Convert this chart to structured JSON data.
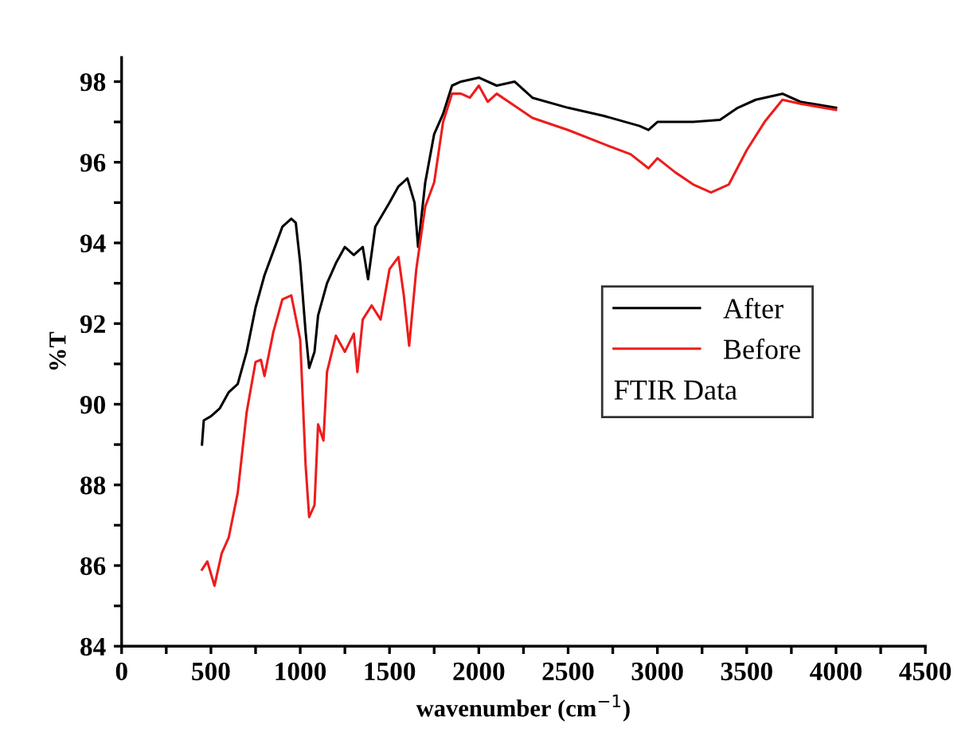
{
  "chart_data": {
    "type": "line",
    "xlabel": "wavenumber (cm$^{−1}$)",
    "ylabel": "%T",
    "legend_title": "FTIR Data",
    "xlim": [
      0,
      4500
    ],
    "ylim": [
      84,
      98.6
    ],
    "xticks": [
      0,
      {
        "value": 250,
        "label": null
      },
      500,
      {
        "value": 750,
        "label": null
      },
      1000,
      {
        "value": 1250,
        "label": null
      },
      1500,
      {
        "value": 1750,
        "label": null
      },
      2000,
      {
        "value": 2250,
        "label": null
      },
      2500,
      {
        "value": 2750,
        "label": null
      },
      3000,
      {
        "value": 3250,
        "label": null
      },
      3500,
      {
        "value": 3750,
        "label": null
      },
      4000,
      {
        "value": 4250,
        "label": null
      },
      4500
    ],
    "yticks": [
      84,
      {
        "value": 85,
        "label": null
      },
      86,
      {
        "value": 87,
        "label": null
      },
      88,
      {
        "value": 89,
        "label": null
      },
      90,
      {
        "value": 91,
        "label": null
      },
      92,
      {
        "value": 93,
        "label": null
      },
      94,
      {
        "value": 95,
        "label": null
      },
      96,
      {
        "value": 97,
        "label": null
      },
      98
    ],
    "grid": false,
    "legend": "right",
    "marker": "none",
    "line_style": "solid",
    "series": [
      {
        "name": "After",
        "color": "#000000",
        "x": [
          450,
          460,
          500,
          550,
          600,
          650,
          700,
          750,
          800,
          850,
          900,
          950,
          975,
          1000,
          1030,
          1050,
          1080,
          1100,
          1150,
          1200,
          1250,
          1300,
          1350,
          1380,
          1420,
          1500,
          1550,
          1600,
          1640,
          1660,
          1700,
          1750,
          1800,
          1850,
          1900,
          2000,
          2100,
          2200,
          2300,
          2500,
          2700,
          2900,
          2950,
          3000,
          3200,
          3350,
          3450,
          3550,
          3700,
          3800,
          4000
        ],
        "values": [
          89.0,
          89.6,
          89.7,
          89.9,
          90.3,
          90.5,
          91.3,
          92.4,
          93.2,
          93.8,
          94.4,
          94.6,
          94.5,
          93.5,
          91.8,
          90.9,
          91.3,
          92.2,
          93.0,
          93.5,
          93.9,
          93.7,
          93.9,
          93.1,
          94.4,
          95.0,
          95.4,
          95.6,
          95.0,
          93.9,
          95.5,
          96.7,
          97.2,
          97.9,
          98.0,
          98.1,
          97.9,
          98.0,
          97.6,
          97.35,
          97.15,
          96.9,
          96.8,
          97.0,
          97.0,
          97.05,
          97.35,
          97.55,
          97.7,
          97.5,
          97.35
        ]
      },
      {
        "name": "Before",
        "color": "#ee1c1c",
        "x": [
          450,
          480,
          520,
          560,
          600,
          650,
          700,
          750,
          780,
          800,
          850,
          900,
          950,
          1000,
          1030,
          1050,
          1080,
          1100,
          1130,
          1150,
          1200,
          1250,
          1300,
          1320,
          1350,
          1400,
          1450,
          1500,
          1550,
          1580,
          1610,
          1650,
          1700,
          1750,
          1800,
          1850,
          1900,
          1950,
          2000,
          2050,
          2100,
          2200,
          2300,
          2500,
          2700,
          2850,
          2950,
          3000,
          3100,
          3200,
          3300,
          3400,
          3500,
          3600,
          3700,
          3800,
          4000
        ],
        "values": [
          85.9,
          86.1,
          85.5,
          86.3,
          86.7,
          87.8,
          89.8,
          91.05,
          91.1,
          90.7,
          91.8,
          92.6,
          92.7,
          91.6,
          88.5,
          87.2,
          87.5,
          89.5,
          89.1,
          90.8,
          91.7,
          91.3,
          91.75,
          90.8,
          92.1,
          92.45,
          92.1,
          93.35,
          93.65,
          92.7,
          91.45,
          93.35,
          94.9,
          95.5,
          97.0,
          97.7,
          97.7,
          97.6,
          97.9,
          97.5,
          97.7,
          97.4,
          97.1,
          96.8,
          96.45,
          96.2,
          95.85,
          96.1,
          95.75,
          95.45,
          95.25,
          95.45,
          96.3,
          97.0,
          97.55,
          97.45,
          97.3
        ]
      }
    ]
  }
}
